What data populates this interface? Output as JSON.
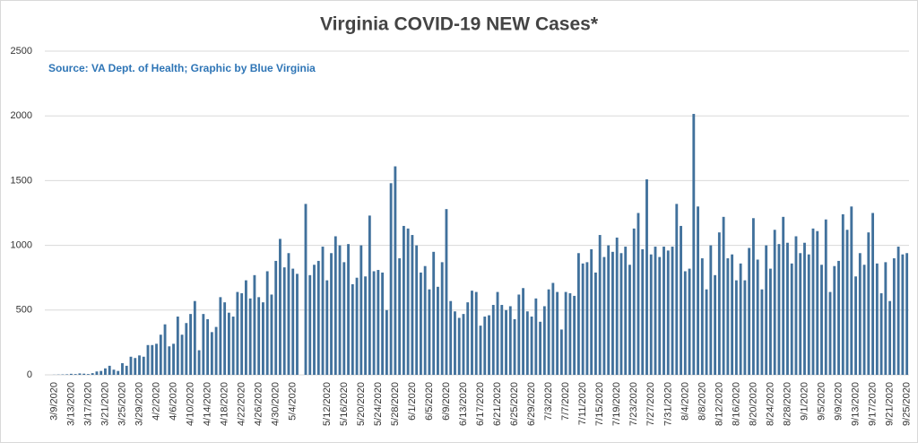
{
  "chart_data": {
    "type": "bar",
    "title": "Virginia COVID-19 NEW Cases*",
    "subtitle": "Source: VA Dept. of Health; Graphic by Blue Virginia",
    "categories": [
      "3/9",
      null,
      null,
      null,
      "3/13",
      null,
      null,
      null,
      "3/17",
      null,
      null,
      null,
      "3/21",
      null,
      null,
      null,
      "3/25",
      null,
      null,
      null,
      "3/29",
      null,
      null,
      null,
      "4/2",
      null,
      null,
      null,
      "4/6",
      null,
      null,
      null,
      "4/10",
      null,
      null,
      null,
      "4/14",
      null,
      null,
      null,
      "4/18",
      null,
      null,
      null,
      "4/22",
      null,
      null,
      null,
      "4/26",
      null,
      null,
      null,
      "4/30",
      null,
      null,
      null,
      "5/4",
      null,
      null,
      null,
      null,
      null,
      null,
      null,
      "5/12",
      null,
      null,
      null,
      "5/16",
      null,
      null,
      null,
      "5/20",
      null,
      null,
      null,
      "5/24",
      null,
      null,
      null,
      "5/28",
      null,
      null,
      null,
      "6/1",
      null,
      null,
      null,
      "6/5",
      null,
      null,
      null,
      "6/9",
      null,
      null,
      null,
      "6/13",
      null,
      null,
      null,
      "6/17",
      null,
      null,
      null,
      "6/21",
      null,
      null,
      null,
      "6/25",
      null,
      null,
      null,
      "6/29",
      null,
      null,
      null,
      "7/3",
      null,
      null,
      null,
      "7/7",
      null,
      null,
      null,
      "7/11",
      null,
      null,
      null,
      "7/15",
      null,
      null,
      null,
      "7/19",
      null,
      null,
      null,
      "7/23",
      null,
      null,
      null,
      "7/27",
      null,
      null,
      null,
      "7/31",
      null,
      null,
      null,
      "8/4",
      null,
      null,
      null,
      "8/8",
      null,
      null,
      null,
      "8/12",
      null,
      null,
      null,
      "8/16",
      null,
      null,
      null,
      "8/20",
      null,
      null,
      null,
      "8/24",
      null,
      null,
      null,
      "8/28",
      null,
      null,
      null,
      "9/1",
      null,
      null,
      null,
      "9/5",
      null,
      null,
      null,
      "9/9",
      null,
      null,
      null,
      "9/13",
      null,
      null,
      null,
      "9/17",
      null,
      null,
      null,
      "9/21",
      null,
      null,
      null,
      "9/25"
    ],
    "year_label": "2020",
    "values": [
      1,
      2,
      3,
      4,
      8,
      6,
      11,
      9,
      6,
      13,
      26,
      30,
      50,
      70,
      40,
      30,
      90,
      70,
      140,
      130,
      150,
      140,
      230,
      230,
      240,
      310,
      390,
      220,
      240,
      450,
      310,
      400,
      470,
      570,
      190,
      470,
      430,
      330,
      370,
      600,
      560,
      480,
      450,
      640,
      630,
      730,
      590,
      770,
      600,
      560,
      800,
      620,
      880,
      1050,
      830,
      940,
      820,
      780,
      null,
      1320,
      770,
      850,
      880,
      990,
      730,
      940,
      1070,
      1000,
      870,
      1010,
      700,
      750,
      1000,
      760,
      1230,
      800,
      810,
      790,
      500,
      1480,
      1610,
      900,
      1150,
      1130,
      1080,
      1000,
      790,
      840,
      660,
      950,
      680,
      870,
      1280,
      570,
      490,
      440,
      470,
      560,
      650,
      640,
      380,
      450,
      460,
      540,
      640,
      540,
      500,
      530,
      430,
      620,
      670,
      490,
      450,
      590,
      410,
      530,
      660,
      710,
      640,
      350,
      640,
      630,
      610,
      940,
      860,
      870,
      970,
      790,
      1080,
      910,
      1000,
      950,
      1060,
      940,
      990,
      850,
      1130,
      1250,
      970,
      1510,
      930,
      990,
      910,
      990,
      960,
      990,
      1320,
      1150,
      800,
      820,
      2015,
      1300,
      900,
      660,
      1000,
      770,
      1100,
      1220,
      900,
      930,
      730,
      860,
      730,
      980,
      1210,
      890,
      660,
      1000,
      820,
      1120,
      1010,
      1220,
      1020,
      860,
      1070,
      940,
      1020,
      930,
      1130,
      1110,
      850,
      1200,
      640,
      840,
      880,
      1240,
      1120,
      1300,
      760,
      940,
      850,
      1100,
      1250,
      860,
      630,
      870,
      570,
      900,
      990,
      930,
      940
    ],
    "color": "#41719c",
    "ylim": [
      0,
      2500
    ],
    "yticks": [
      0,
      500,
      1000,
      1500,
      2000,
      2500
    ],
    "grid": true
  }
}
